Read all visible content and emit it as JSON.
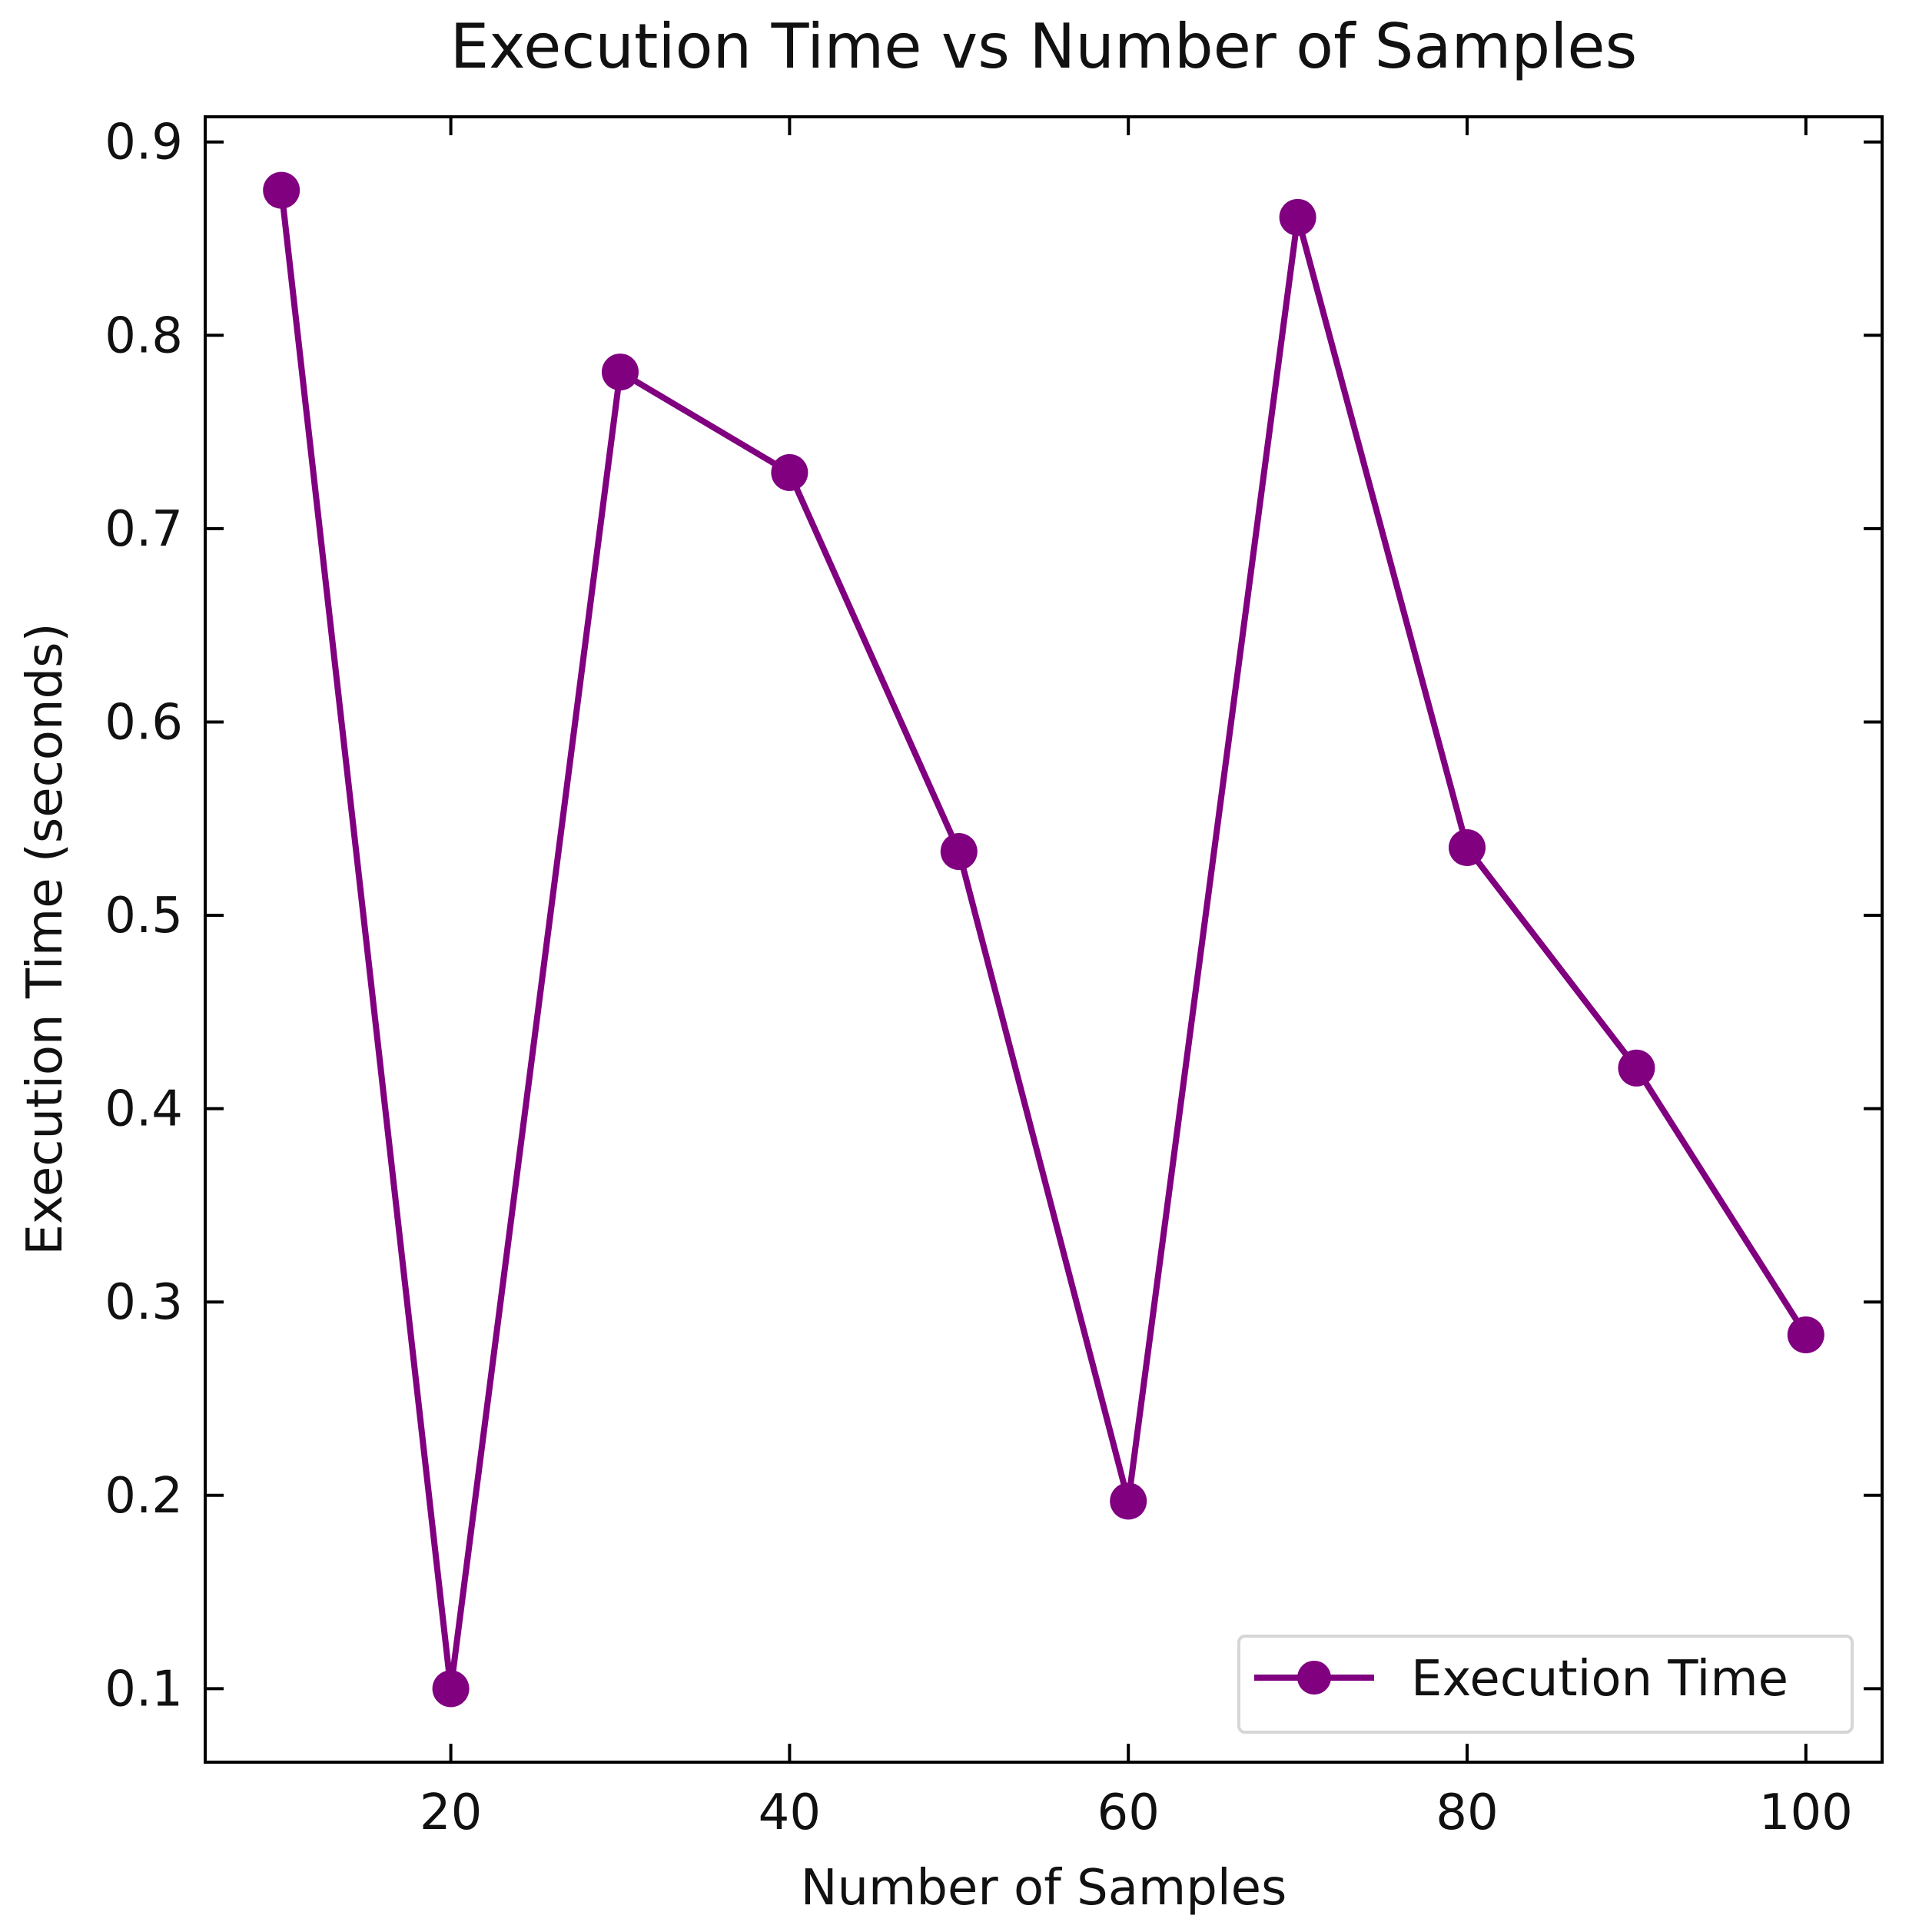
{
  "chart_data": {
    "type": "line",
    "title": "Execution Time vs Number of Samples",
    "xlabel": "Number of Samples",
    "ylabel": "Execution Time (seconds)",
    "xlim": [
      5.5,
      104.5
    ],
    "ylim": [
      0.062,
      0.913
    ],
    "xticks": [
      20,
      40,
      60,
      80,
      100
    ],
    "xtick_labels": [
      "20",
      "40",
      "60",
      "80",
      "100"
    ],
    "yticks": [
      0.1,
      0.2,
      0.3,
      0.4,
      0.5,
      0.6,
      0.7,
      0.8,
      0.9
    ],
    "ytick_labels": [
      "0.1",
      "0.2",
      "0.3",
      "0.4",
      "0.5",
      "0.6",
      "0.7",
      "0.8",
      "0.9"
    ],
    "grid": false,
    "legend": {
      "position": "lower-right",
      "entries": [
        "Execution Time"
      ]
    },
    "series": [
      {
        "name": "Execution Time",
        "color": "#800080",
        "marker": "circle",
        "x": [
          10,
          20,
          30,
          40,
          50,
          60,
          70,
          80,
          90,
          100
        ],
        "y": [
          0.875,
          0.1,
          0.781,
          0.729,
          0.533,
          0.197,
          0.861,
          0.535,
          0.421,
          0.283
        ]
      }
    ]
  }
}
